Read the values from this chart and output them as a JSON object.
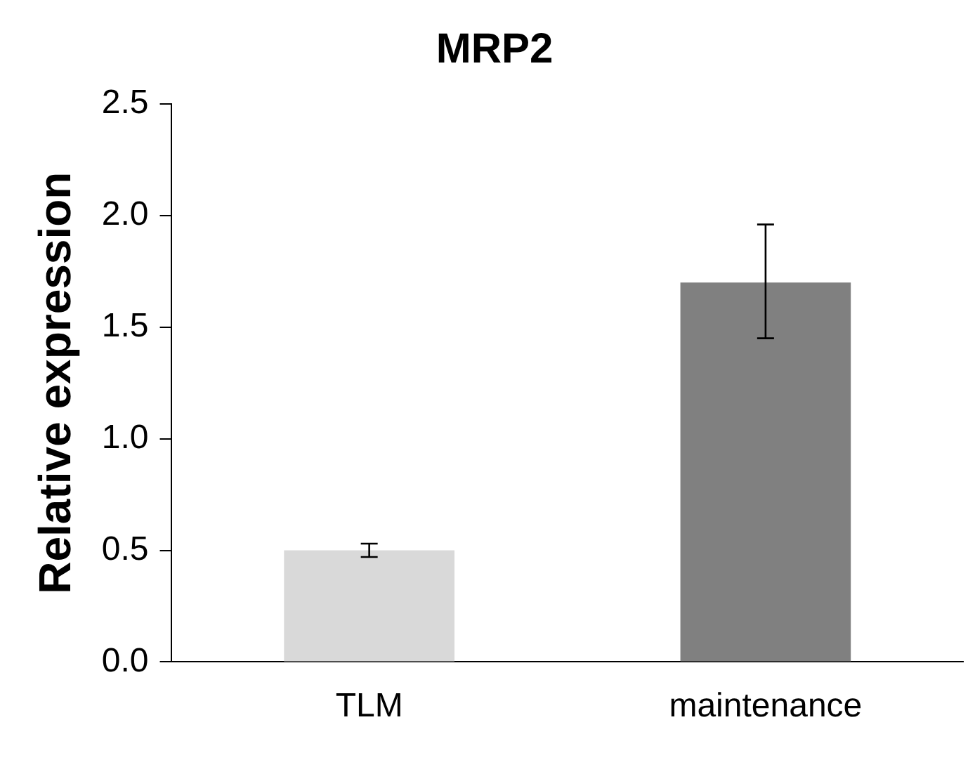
{
  "chart_data": {
    "type": "bar",
    "title": "MRP2",
    "ylabel": "Relative expression",
    "categories": [
      "TLM",
      "maintenance"
    ],
    "values": [
      0.5,
      1.7
    ],
    "colors": [
      "#d9d9d9",
      "#808080"
    ],
    "errors": [
      [
        0.47,
        0.53
      ],
      [
        1.45,
        1.96
      ]
    ],
    "ylim": [
      0,
      2.5
    ],
    "yticks": [
      {
        "value": 0,
        "label": "0.0"
      },
      {
        "value": 0.5,
        "label": "0.5"
      },
      {
        "value": 1,
        "label": "1.0"
      },
      {
        "value": 1.5,
        "label": "1.5"
      },
      {
        "value": 2,
        "label": "2.0"
      },
      {
        "value": 2.5,
        "label": "2.5"
      }
    ],
    "grid": false,
    "legend": false
  }
}
